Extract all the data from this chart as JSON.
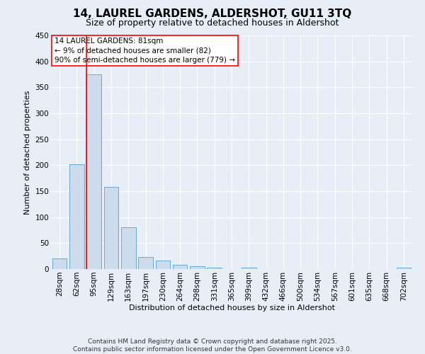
{
  "title": "14, LAUREL GARDENS, ALDERSHOT, GU11 3TQ",
  "subtitle": "Size of property relative to detached houses in Aldershot",
  "xlabel": "Distribution of detached houses by size in Aldershot",
  "ylabel": "Number of detached properties",
  "bar_labels": [
    "28sqm",
    "62sqm",
    "95sqm",
    "129sqm",
    "163sqm",
    "197sqm",
    "230sqm",
    "264sqm",
    "298sqm",
    "331sqm",
    "365sqm",
    "399sqm",
    "432sqm",
    "466sqm",
    "500sqm",
    "534sqm",
    "567sqm",
    "601sqm",
    "635sqm",
    "668sqm",
    "702sqm"
  ],
  "bar_values": [
    20,
    202,
    375,
    158,
    80,
    23,
    16,
    8,
    5,
    3,
    0,
    3,
    0,
    0,
    0,
    0,
    0,
    0,
    0,
    0,
    3
  ],
  "bar_color": "#ccdcec",
  "bar_edgecolor": "#6aaad4",
  "ylim": [
    0,
    450
  ],
  "yticks": [
    0,
    50,
    100,
    150,
    200,
    250,
    300,
    350,
    400,
    450
  ],
  "red_line_x": 1.57,
  "annotation_title": "14 LAUREL GARDENS: 81sqm",
  "annotation_line2": "← 9% of detached houses are smaller (82)",
  "annotation_line3": "90% of semi-detached houses are larger (779) →",
  "footer_line1": "Contains HM Land Registry data © Crown copyright and database right 2025.",
  "footer_line2": "Contains public sector information licensed under the Open Government Licence v3.0.",
  "background_color": "#e8eef8",
  "grid_color": "#ffffff",
  "title_fontsize": 11,
  "subtitle_fontsize": 9,
  "axis_fontsize": 8,
  "tick_fontsize": 7.5,
  "annotation_fontsize": 7.5,
  "footer_fontsize": 6.5
}
